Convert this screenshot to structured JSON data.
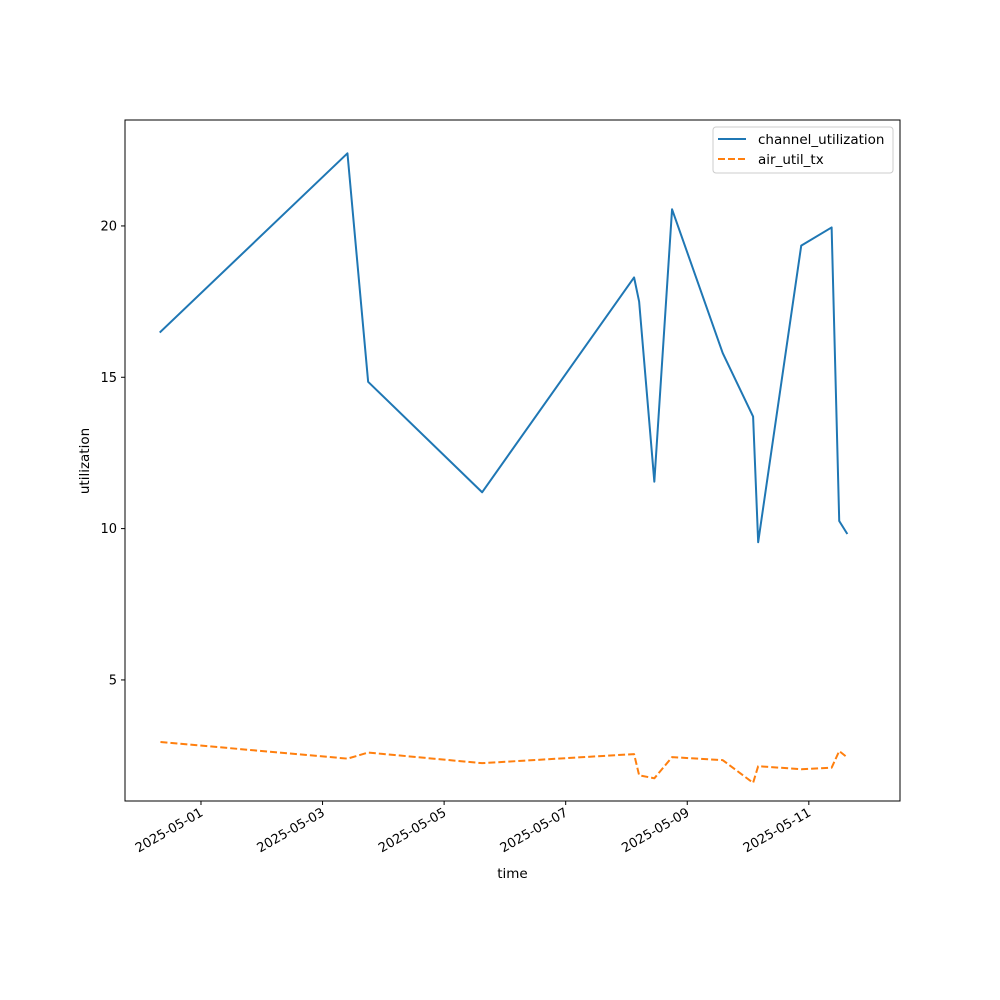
{
  "chart_data": {
    "type": "line",
    "title": "",
    "xlabel": "time",
    "ylabel": "utilization",
    "x_type": "date",
    "xlim": [
      "2025-04-29T18:00",
      "2025-05-12T12:00"
    ],
    "ylim": [
      1.0,
      23.5
    ],
    "xticks": [
      "2025-05-01",
      "2025-05-03",
      "2025-05-05",
      "2025-05-07",
      "2025-05-09",
      "2025-05-11"
    ],
    "yticks": [
      5,
      10,
      15,
      20
    ],
    "grid": false,
    "legend": "top-right",
    "series": [
      {
        "name": "channel_utilization",
        "color": "#1f77b4",
        "style": "solid",
        "points": [
          {
            "x": "2025-04-30T08:00",
            "y": 16.5
          },
          {
            "x": "2025-05-03T09:50",
            "y": 22.4
          },
          {
            "x": "2025-05-03T18:00",
            "y": 14.85
          },
          {
            "x": "2025-05-05T15:00",
            "y": 11.2
          },
          {
            "x": "2025-05-08T03:00",
            "y": 18.3
          },
          {
            "x": "2025-05-08T05:00",
            "y": 17.5
          },
          {
            "x": "2025-05-08T11:00",
            "y": 11.55
          },
          {
            "x": "2025-05-08T18:00",
            "y": 20.55
          },
          {
            "x": "2025-05-09T14:00",
            "y": 15.8
          },
          {
            "x": "2025-05-10T02:00",
            "y": 13.7
          },
          {
            "x": "2025-05-10T04:00",
            "y": 9.55
          },
          {
            "x": "2025-05-10T21:00",
            "y": 19.35
          },
          {
            "x": "2025-05-11T09:00",
            "y": 19.95
          },
          {
            "x": "2025-05-11T12:00",
            "y": 10.25
          },
          {
            "x": "2025-05-11T15:00",
            "y": 9.85
          }
        ]
      },
      {
        "name": "air_util_tx",
        "color": "#ff7f0e",
        "style": "dashed",
        "points": [
          {
            "x": "2025-04-30T08:00",
            "y": 2.95
          },
          {
            "x": "2025-05-03T09:50",
            "y": 2.4
          },
          {
            "x": "2025-05-03T18:00",
            "y": 2.6
          },
          {
            "x": "2025-05-05T15:00",
            "y": 2.25
          },
          {
            "x": "2025-05-08T03:00",
            "y": 2.55
          },
          {
            "x": "2025-05-08T05:00",
            "y": 1.85
          },
          {
            "x": "2025-05-08T11:00",
            "y": 1.75
          },
          {
            "x": "2025-05-08T18:00",
            "y": 2.45
          },
          {
            "x": "2025-05-09T14:00",
            "y": 2.35
          },
          {
            "x": "2025-05-10T02:00",
            "y": 1.6
          },
          {
            "x": "2025-05-10T04:00",
            "y": 2.15
          },
          {
            "x": "2025-05-10T21:00",
            "y": 2.05
          },
          {
            "x": "2025-05-11T09:00",
            "y": 2.1
          },
          {
            "x": "2025-05-11T12:00",
            "y": 2.65
          },
          {
            "x": "2025-05-11T15:00",
            "y": 2.45
          }
        ]
      }
    ]
  }
}
